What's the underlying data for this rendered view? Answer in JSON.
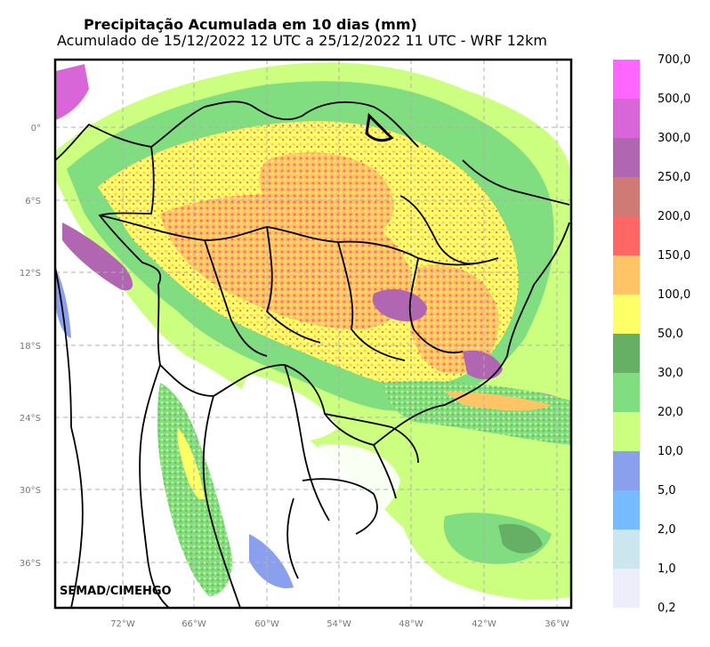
{
  "title": {
    "line1": "Precipitação Acumulada em 10 dias (mm)",
    "line2": "Acumulado de 15/12/2022 12 UTC a 25/12/2022 11 UTC - WRF 12km"
  },
  "credit": "SEMAD/CIMEHGO",
  "lat_labels": [
    "0°",
    "6°S",
    "12°S",
    "18°S",
    "24°S",
    "30°S",
    "36°S"
  ],
  "lon_labels": [
    "72°W",
    "66°W",
    "60°W",
    "54°W",
    "48°W",
    "42°W",
    "36°W"
  ],
  "colorbar": [
    {
      "label": "700,0",
      "color": "#ff66ff"
    },
    {
      "label": "500,0",
      "color": "#d966d9"
    },
    {
      "label": "300,0",
      "color": "#b066b0"
    },
    {
      "label": "250,0",
      "color": "#d07a76"
    },
    {
      "label": "200,0",
      "color": "#ff6666"
    },
    {
      "label": "150,0",
      "color": "#ffc466"
    },
    {
      "label": "100,0",
      "color": "#ffff66"
    },
    {
      "label": "50,0",
      "color": "#66b066"
    },
    {
      "label": "30,0",
      "color": "#80dd80"
    },
    {
      "label": "20,0",
      "color": "#ccff80"
    },
    {
      "label": "10,0",
      "color": "#8aa0ee"
    },
    {
      "label": "5,0",
      "color": "#77bbff"
    },
    {
      "label": "2,0",
      "color": "#cce6f0"
    },
    {
      "label": "1,0",
      "color": "#eeeefa"
    },
    {
      "label": "0,2",
      "color": ""
    }
  ]
}
